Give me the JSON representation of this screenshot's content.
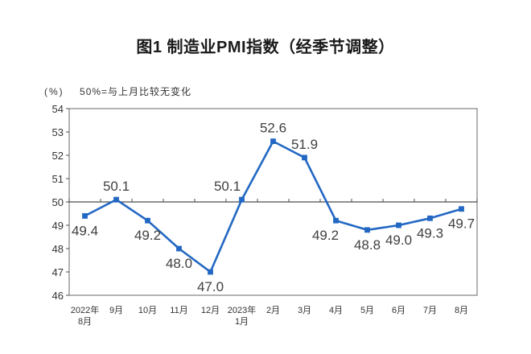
{
  "page": {
    "background": "#ffffff"
  },
  "chart_data": {
    "type": "line",
    "title": "图1 制造业PMI指数（经季节调整）",
    "unit_label": "(%)",
    "note": "50%=与上月比较无变化",
    "categories": [
      [
        "2022年",
        "8月"
      ],
      [
        "9月"
      ],
      [
        "10月"
      ],
      [
        "11月"
      ],
      [
        "12月"
      ],
      [
        "2023年",
        "1月"
      ],
      [
        "2月"
      ],
      [
        "3月"
      ],
      [
        "4月"
      ],
      [
        "5月"
      ],
      [
        "6月"
      ],
      [
        "7月"
      ],
      [
        "8月"
      ]
    ],
    "values": [
      49.4,
      50.1,
      49.2,
      48.0,
      47.0,
      50.1,
      52.6,
      51.9,
      49.2,
      48.8,
      49.0,
      49.3,
      49.7
    ],
    "data_labels": [
      "49.4",
      "50.1",
      "49.2",
      "48.0",
      "47.0",
      "50.1",
      "52.6",
      "51.9",
      "49.2",
      "48.8",
      "49.0",
      "49.3",
      "49.7"
    ],
    "label_side": [
      "below",
      "above",
      "below",
      "below",
      "below",
      "above",
      "above",
      "above",
      "below",
      "below",
      "below",
      "below",
      "below"
    ],
    "label_dx": [
      0,
      0,
      0,
      0,
      0,
      -18,
      0,
      0,
      -13,
      0,
      0,
      0,
      0
    ],
    "ylim": [
      46,
      54
    ],
    "ytick_step": 1,
    "y_tick_labels": [
      "46",
      "47",
      "48",
      "49",
      "50",
      "51",
      "52",
      "53",
      "54"
    ],
    "baseline_value": 50,
    "grid": "off",
    "legend": "none",
    "marker": "square",
    "colors": {
      "line": "#2268C3",
      "marker": "#2268C3",
      "frame": "#808080",
      "axis": "#4d4d4d",
      "tick_text": "#333333",
      "data_label_text": "#404040",
      "title_text": "#1a1a1a"
    }
  }
}
